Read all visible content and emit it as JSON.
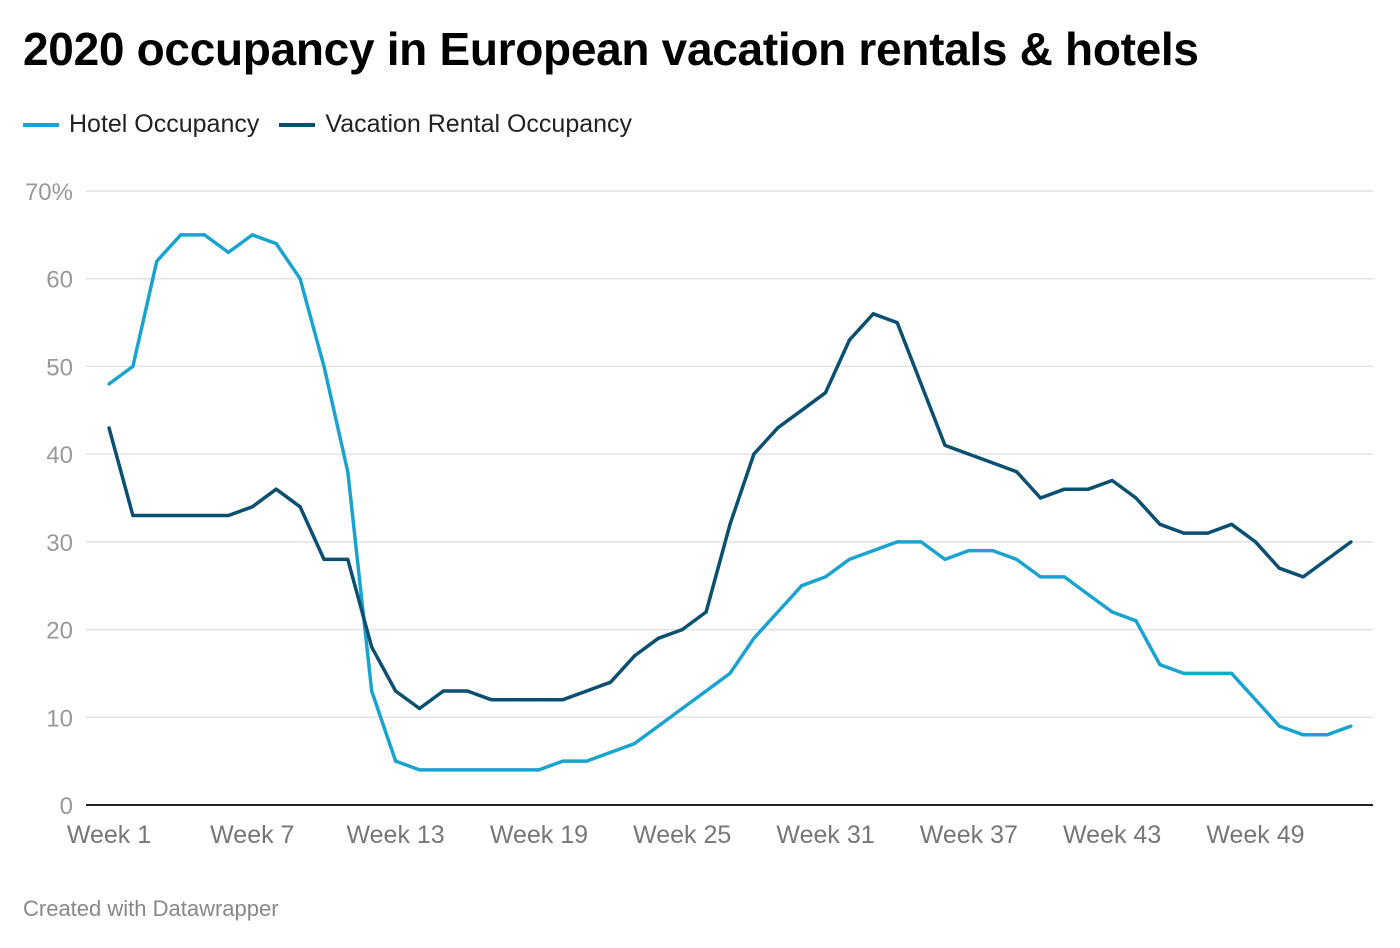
{
  "chart_data": {
    "type": "line",
    "title": "2020 occupancy in European vacation rentals & hotels",
    "xlabel": "",
    "ylabel": "",
    "ylim": [
      0,
      70
    ],
    "yticks": [
      0,
      10,
      20,
      30,
      40,
      50,
      60,
      70
    ],
    "ytick_labels": [
      "0",
      "10",
      "20",
      "30",
      "40",
      "50",
      "60",
      "70%"
    ],
    "xtick_labels": [
      "Week 1",
      "Week 7",
      "Week 13",
      "Week 19",
      "Week 25",
      "Week 31",
      "Week 37",
      "Week 43",
      "Week 49"
    ],
    "xtick_weeks": [
      1,
      7,
      13,
      19,
      25,
      31,
      37,
      43,
      49
    ],
    "x_start_week": 1,
    "grid": true,
    "legend": "top-left",
    "series": [
      {
        "name": "Hotel Occupancy",
        "color": "#1ba3d0",
        "values": [
          48,
          50,
          62,
          65,
          65,
          63,
          65,
          64,
          60,
          50,
          38,
          13,
          5,
          4,
          4,
          4,
          4,
          4,
          4,
          5,
          5,
          6,
          7,
          9,
          11,
          13,
          15,
          19,
          22,
          25,
          26,
          28,
          29,
          30,
          30,
          28,
          29,
          29,
          28,
          26,
          26,
          24,
          22,
          21,
          16,
          15,
          15,
          15,
          12,
          9,
          8,
          8,
          9
        ]
      },
      {
        "name": "Vacation Rental Occupancy",
        "color": "#0b4f71",
        "values": [
          43,
          33,
          33,
          33,
          33,
          33,
          34,
          36,
          34,
          28,
          28,
          18,
          13,
          11,
          13,
          13,
          12,
          12,
          12,
          12,
          13,
          14,
          17,
          19,
          20,
          22,
          32,
          40,
          43,
          45,
          47,
          53,
          56,
          55,
          48,
          41,
          40,
          39,
          38,
          35,
          36,
          36,
          37,
          35,
          32,
          31,
          31,
          32,
          30,
          27,
          26,
          28,
          30
        ]
      }
    ]
  },
  "footer": "Created with Datawrapper"
}
